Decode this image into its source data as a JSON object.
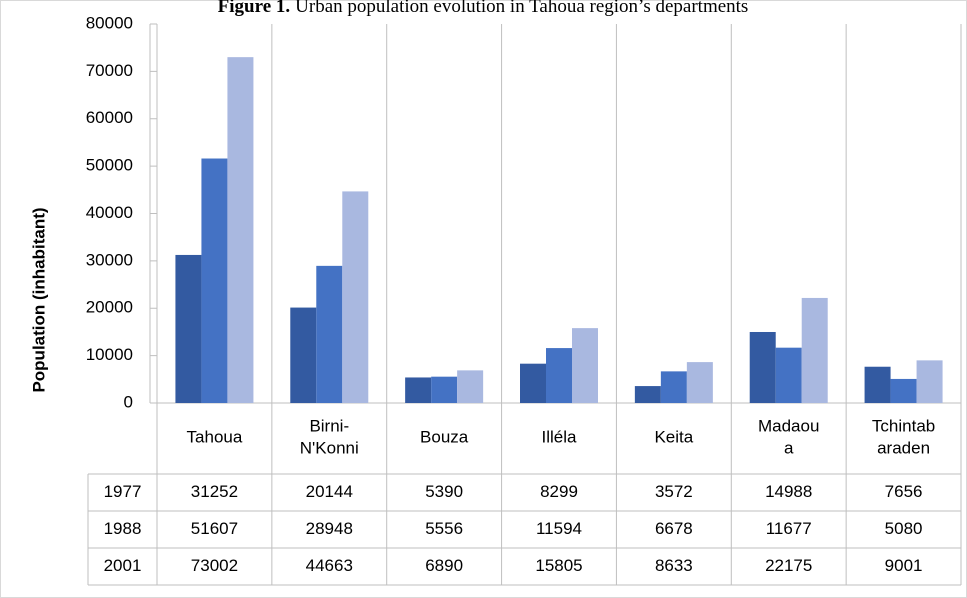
{
  "chart_data": {
    "type": "bar",
    "title_label": "Figure 1.",
    "title": "Urban population evolution in Tahoua region’s departments",
    "y_label": "Population (inhabitant)",
    "categories": [
      "Tahoua",
      "Birni-\nN'Konni",
      "Bouza",
      "Illéla",
      "Keita",
      "Madaou\na",
      "Tchintab\naraden"
    ],
    "series": [
      {
        "name": "1977",
        "color": "#335aa1",
        "values": [
          31252,
          20144,
          5390,
          8299,
          3572,
          14988,
          7656
        ]
      },
      {
        "name": "1988",
        "color": "#4472c4",
        "values": [
          51607,
          28948,
          5556,
          11594,
          6678,
          11677,
          5080
        ]
      },
      {
        "name": "2001",
        "color": "#a9b8e0",
        "values": [
          73002,
          44663,
          6890,
          15805,
          8633,
          22175,
          9001
        ]
      }
    ],
    "ylim": [
      0,
      80000
    ],
    "yticks": [
      0,
      10000,
      20000,
      30000,
      40000,
      50000,
      60000,
      70000,
      80000
    ],
    "grid": false
  }
}
